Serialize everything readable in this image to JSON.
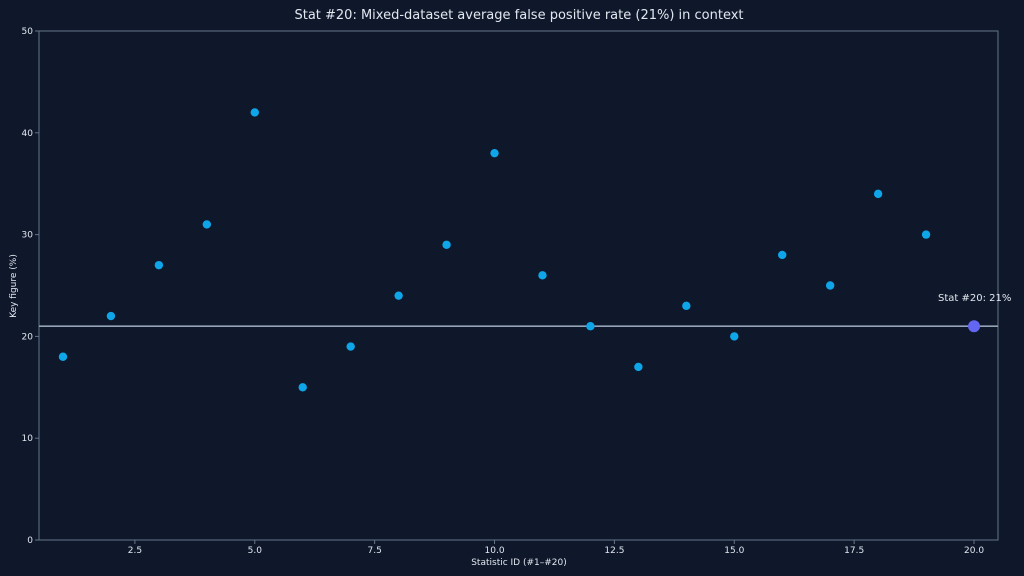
{
  "chart_data": {
    "type": "scatter",
    "title": "Stat #20: Mixed-dataset average false positive rate (21%) in context",
    "xlabel": "Statistic ID (#1–#20)",
    "ylabel": "Key figure (%)",
    "xlim": [
      0.5,
      20.5
    ],
    "ylim": [
      0,
      50
    ],
    "xticks": [
      2.5,
      5.0,
      7.5,
      10.0,
      12.5,
      15.0,
      17.5,
      20.0
    ],
    "xtick_labels": [
      "2.5",
      "5.0",
      "7.5",
      "10.0",
      "12.5",
      "15.0",
      "17.5",
      "20.0"
    ],
    "yticks": [
      0,
      10,
      20,
      30,
      40,
      50
    ],
    "ytick_labels": [
      "0",
      "10",
      "20",
      "30",
      "40",
      "50"
    ],
    "grid": false,
    "points": [
      {
        "x": 1,
        "y": 18
      },
      {
        "x": 2,
        "y": 22
      },
      {
        "x": 3,
        "y": 27
      },
      {
        "x": 4,
        "y": 31
      },
      {
        "x": 5,
        "y": 42
      },
      {
        "x": 6,
        "y": 15
      },
      {
        "x": 7,
        "y": 19
      },
      {
        "x": 8,
        "y": 24
      },
      {
        "x": 9,
        "y": 29
      },
      {
        "x": 10,
        "y": 38
      },
      {
        "x": 11,
        "y": 26
      },
      {
        "x": 12,
        "y": 21
      },
      {
        "x": 13,
        "y": 17
      },
      {
        "x": 14,
        "y": 23
      },
      {
        "x": 15,
        "y": 20
      },
      {
        "x": 16,
        "y": 28
      },
      {
        "x": 17,
        "y": 25
      },
      {
        "x": 18,
        "y": 34
      },
      {
        "x": 19,
        "y": 30
      }
    ],
    "highlight": {
      "x": 20,
      "y": 21,
      "label": "Stat #20: 21%"
    },
    "reference_line_y": 21,
    "colors": {
      "background": "#0f172a",
      "point": "#0ea5e9",
      "highlight": "#6366f1",
      "reference_line": "#94a3b8",
      "axis": "#64748b",
      "text": "#e2e8f0"
    }
  }
}
